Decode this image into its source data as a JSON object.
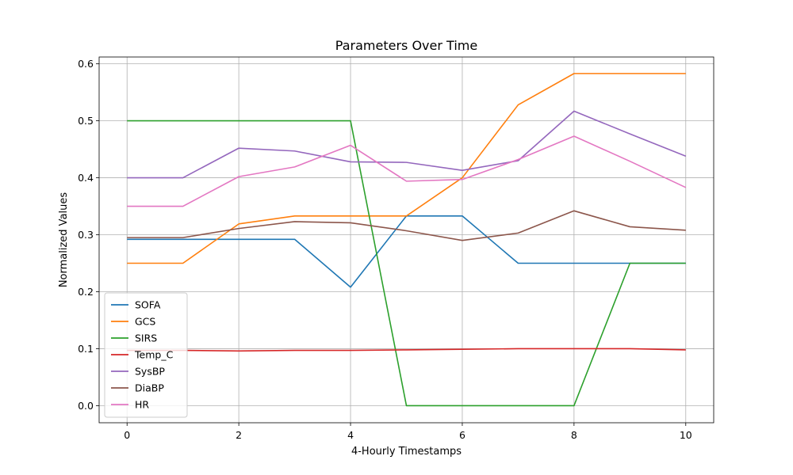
{
  "chart_data": {
    "type": "line",
    "title": "Parameters Over Time",
    "xlabel": "4-Hourly Timestamps",
    "ylabel": "Normalized Values",
    "xlim": [
      -0.5,
      10.5
    ],
    "ylim": [
      -0.03,
      0.612
    ],
    "xticks": [
      0,
      2,
      4,
      6,
      8,
      10
    ],
    "yticks": [
      0.0,
      0.1,
      0.2,
      0.3,
      0.4,
      0.5,
      0.6
    ],
    "ytick_labels": [
      "0.0",
      "0.1",
      "0.2",
      "0.3",
      "0.4",
      "0.5",
      "0.6"
    ],
    "grid": true,
    "legend_position": "lower-left",
    "x": [
      0,
      1,
      2,
      3,
      4,
      5,
      6,
      7,
      8,
      9,
      10
    ],
    "series": [
      {
        "name": "SOFA",
        "color": "#1f77b4",
        "values": [
          0.292,
          0.292,
          0.292,
          0.292,
          0.208,
          0.333,
          0.333,
          0.25,
          0.25,
          0.25,
          0.25
        ]
      },
      {
        "name": "GCS",
        "color": "#ff7f0e",
        "values": [
          0.25,
          0.25,
          0.319,
          0.333,
          0.333,
          0.333,
          0.4,
          0.528,
          0.583,
          0.583,
          0.583
        ]
      },
      {
        "name": "SIRS",
        "color": "#2ca02c",
        "values": [
          0.5,
          0.5,
          0.5,
          0.5,
          0.5,
          0.0,
          0.0,
          0.0,
          0.0,
          0.25,
          0.25
        ]
      },
      {
        "name": "Temp_C",
        "color": "#d62728",
        "values": [
          0.097,
          0.097,
          0.096,
          0.097,
          0.097,
          0.098,
          0.099,
          0.1,
          0.1,
          0.1,
          0.098
        ]
      },
      {
        "name": "SysBP",
        "color": "#9467bd",
        "values": [
          0.4,
          0.4,
          0.452,
          0.447,
          0.428,
          0.427,
          0.413,
          0.43,
          0.517,
          0.477,
          0.438
        ]
      },
      {
        "name": "DiaBP",
        "color": "#8c564b",
        "values": [
          0.295,
          0.295,
          0.311,
          0.323,
          0.321,
          0.307,
          0.29,
          0.303,
          0.342,
          0.314,
          0.308
        ]
      },
      {
        "name": "HR",
        "color": "#e377c2",
        "values": [
          0.35,
          0.35,
          0.402,
          0.419,
          0.457,
          0.394,
          0.397,
          0.432,
          0.473,
          0.429,
          0.383
        ]
      }
    ]
  }
}
